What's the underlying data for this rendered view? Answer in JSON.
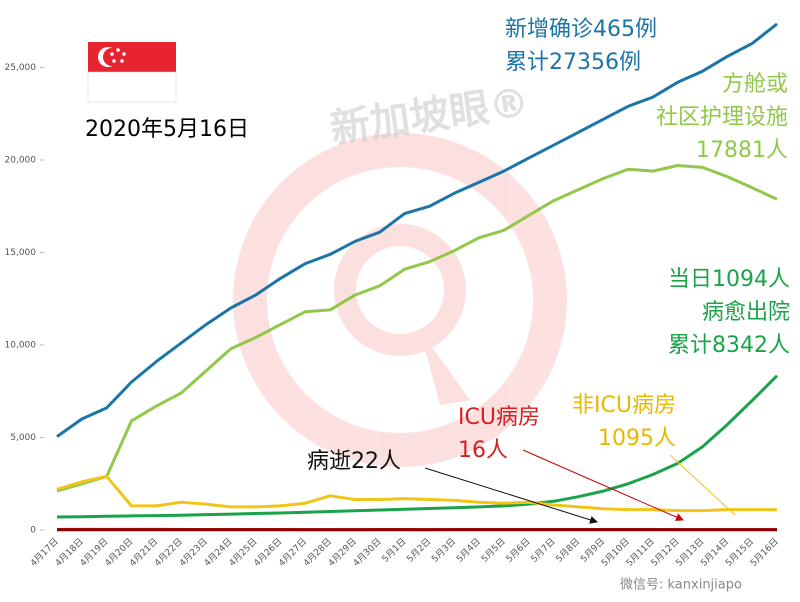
{
  "chart_data": {
    "type": "line",
    "date_label": "2020年5月16日",
    "watermark": "新加坡眼®",
    "footer": "微信号: kanxinjiapo",
    "categories": [
      "4月17日",
      "4月18日",
      "4月19日",
      "4月20日",
      "4月21日",
      "4月22日",
      "4月23日",
      "4月24日",
      "4月25日",
      "4月26日",
      "4月27日",
      "4月28日",
      "4月29日",
      "4月30日",
      "5月1日",
      "5月2日",
      "5月3日",
      "5月4日",
      "5月5日",
      "5月6日",
      "5月7日",
      "5月8日",
      "5月9日",
      "5月10日",
      "5月11日",
      "5月12日",
      "5月13日",
      "5月14日",
      "5月15日",
      "5月16日"
    ],
    "series": [
      {
        "color": "#1b75a8",
        "values": [
          5050,
          6000,
          6600,
          8000,
          9100,
          10100,
          11100,
          12000,
          12700,
          13600,
          14400,
          14900,
          15600,
          16100,
          17100,
          17500,
          18200,
          18800,
          19400,
          20100,
          20800,
          21500,
          22200,
          22900,
          23400,
          24200,
          24800,
          25600,
          26300,
          27356
        ]
      },
      {
        "color": "#92c84a",
        "values": [
          2100,
          2500,
          2900,
          5900,
          6700,
          7400,
          8600,
          9800,
          10400,
          11100,
          11800,
          11900,
          12700,
          13200,
          14100,
          14500,
          15100,
          15800,
          16200,
          17000,
          17800,
          18400,
          19000,
          19500,
          19400,
          19700,
          19600,
          19100,
          18500,
          17881
        ]
      },
      {
        "color": "#1aa34a",
        "values": [
          700,
          720,
          740,
          760,
          780,
          800,
          830,
          860,
          890,
          920,
          960,
          1000,
          1040,
          1080,
          1120,
          1160,
          1200,
          1250,
          1300,
          1400,
          1550,
          1800,
          2100,
          2500,
          3000,
          3600,
          4500,
          5700,
          7000,
          8342
        ]
      },
      {
        "color": "#f0c419",
        "values": [
          2200,
          2600,
          2900,
          1300,
          1300,
          1500,
          1400,
          1250,
          1250,
          1300,
          1450,
          1850,
          1650,
          1650,
          1700,
          1650,
          1600,
          1500,
          1450,
          1500,
          1350,
          1250,
          1150,
          1100,
          1100,
          1050,
          1050,
          1100,
          1100,
          1095
        ]
      },
      {
        "color": "#d0202a",
        "values": [
          30,
          30,
          31,
          32,
          32,
          28,
          27,
          28,
          26,
          25,
          24,
          24,
          23,
          25,
          25,
          24,
          23,
          23,
          23,
          22,
          22,
          21,
          21,
          20,
          19,
          18,
          18,
          17,
          17,
          16
        ]
      },
      {
        "color": "#8b0000",
        "values": [
          11,
          11,
          11,
          11,
          11,
          12,
          12,
          12,
          14,
          14,
          14,
          14,
          15,
          15,
          17,
          18,
          20,
          20,
          20,
          20,
          20,
          20,
          20,
          21,
          21,
          21,
          22,
          22,
          22,
          22
        ]
      }
    ],
    "annotations": [
      {
        "lines": [
          "新增确诊465例",
          "累计27356例"
        ],
        "color": "#1b75a8"
      },
      {
        "lines": [
          "方舱或",
          "社区护理设施",
          "17881人"
        ],
        "color": "#92c84a"
      },
      {
        "lines": [
          "当日1094人",
          "病愈出院",
          "累计8342人"
        ],
        "color": "#1aa34a"
      },
      {
        "lines": [
          "非ICU病房",
          "1095人"
        ],
        "color": "#e8b800"
      },
      {
        "lines": [
          "ICU病房",
          "16人"
        ],
        "color": "#d42020"
      },
      {
        "lines": [
          "病逝22人"
        ],
        "color": "#111111"
      }
    ],
    "ylim": [
      0,
      28000
    ],
    "yticks": [
      0,
      {
        "value": 5000,
        "label": "5,000"
      },
      {
        "value": 10000,
        "label": "10,000"
      },
      {
        "value": 15000,
        "label": "15,000"
      },
      {
        "value": 20000,
        "label": "20,000"
      },
      {
        "value": 25000,
        "label": "25,000"
      }
    ]
  }
}
